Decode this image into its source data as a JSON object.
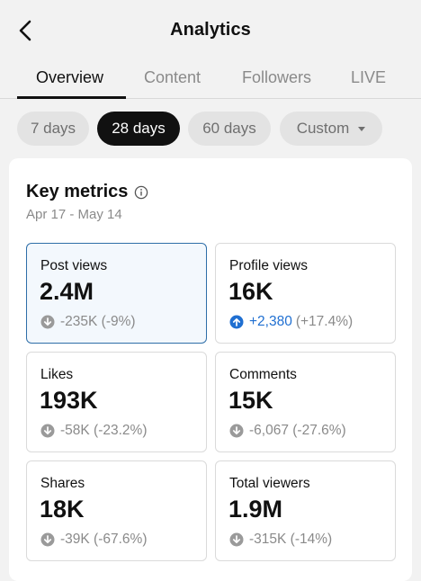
{
  "header": {
    "title": "Analytics"
  },
  "tabs": [
    {
      "label": "Overview",
      "active": true
    },
    {
      "label": "Content",
      "active": false
    },
    {
      "label": "Followers",
      "active": false
    },
    {
      "label": "LIVE",
      "active": false
    }
  ],
  "ranges": [
    {
      "label": "7 days",
      "active": false
    },
    {
      "label": "28 days",
      "active": true
    },
    {
      "label": "60 days",
      "active": false
    },
    {
      "label": "Custom",
      "active": false
    }
  ],
  "key_metrics": {
    "title": "Key metrics",
    "date_range": "Apr 17 - May 14",
    "items": [
      {
        "label": "Post views",
        "value": "2.4M",
        "change": "-235K (-9%)",
        "direction": "down"
      },
      {
        "label": "Profile views",
        "value": "16K",
        "change_abs": "+2,380",
        "change_pct": "(+17.4%)",
        "direction": "up"
      },
      {
        "label": "Likes",
        "value": "193K",
        "change": "-58K (-23.2%)",
        "direction": "down"
      },
      {
        "label": "Comments",
        "value": "15K",
        "change": "-6,067 (-27.6%)",
        "direction": "down"
      },
      {
        "label": "Shares",
        "value": "18K",
        "change": "-39K (-67.6%)",
        "direction": "down"
      },
      {
        "label": "Total viewers",
        "value": "1.9M",
        "change": "-315K (-14%)",
        "direction": "down"
      }
    ]
  },
  "colors": {
    "accent_blue": "#1f6fd1",
    "selected_border": "#2e6ea8",
    "muted": "#8a8a8a"
  }
}
